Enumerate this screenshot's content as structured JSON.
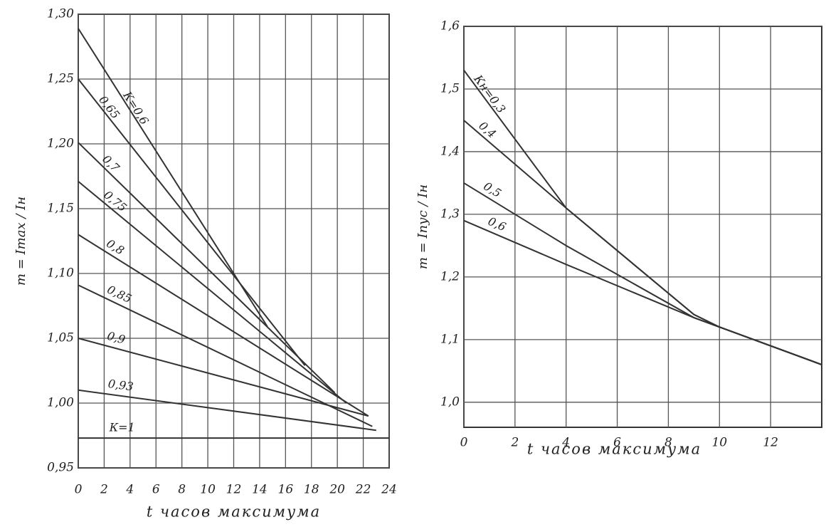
{
  "chart_data": [
    {
      "type": "line",
      "x_label": "t часов максимума",
      "y_label": "m = Imax / Iн",
      "xlim": [
        0,
        24
      ],
      "xticks": [
        0,
        2,
        4,
        6,
        8,
        10,
        12,
        14,
        16,
        18,
        20,
        22,
        24
      ],
      "ylim": [
        0.95,
        1.3
      ],
      "yticks": [
        {
          "value": 0.95,
          "label": "0,95"
        },
        {
          "value": 1.0,
          "label": "1,00"
        },
        {
          "value": 1.05,
          "label": "1,05"
        },
        {
          "value": 1.1,
          "label": "1,10"
        },
        {
          "value": 1.15,
          "label": "1,15"
        },
        {
          "value": 1.2,
          "label": "1,20"
        },
        {
          "value": 1.25,
          "label": "1,25"
        },
        {
          "value": 1.3,
          "label": "1,30"
        }
      ],
      "grid": true,
      "series": [
        {
          "name": "К=0,6",
          "color": "#333333",
          "x": [
            0,
            14.6
          ],
          "values": [
            1.289,
            1.059
          ]
        },
        {
          "name": "0,65",
          "color": "#333333",
          "x": [
            0,
            17.5
          ],
          "values": [
            1.25,
            1.029
          ]
        },
        {
          "name": "0,7",
          "color": "#333333",
          "x": [
            0,
            19.8
          ],
          "values": [
            1.201,
            1.008
          ]
        },
        {
          "name": "0,75",
          "color": "#333333",
          "x": [
            0,
            20.7
          ],
          "values": [
            1.171,
            1.0
          ]
        },
        {
          "name": "0,8",
          "color": "#333333",
          "x": [
            0,
            22.4
          ],
          "values": [
            1.13,
            0.99
          ]
        },
        {
          "name": "0,85",
          "color": "#333333",
          "x": [
            0,
            22.7
          ],
          "values": [
            1.091,
            0.982
          ]
        },
        {
          "name": "0,9",
          "color": "#333333",
          "x": [
            0,
            22.4
          ],
          "values": [
            1.05,
            0.99
          ]
        },
        {
          "name": "0,93",
          "color": "#333333",
          "x": [
            0,
            23
          ],
          "values": [
            1.01,
            0.979
          ]
        },
        {
          "name": "К=1",
          "color": "#333333",
          "x": [
            0,
            24
          ],
          "values": [
            0.973,
            0.973
          ]
        }
      ]
    },
    {
      "type": "line",
      "x_label": "t часов максимума",
      "y_label": "m = Iпус / Iн",
      "xlim": [
        0,
        14
      ],
      "xticks": [
        0,
        2,
        4,
        6,
        8,
        10,
        12
      ],
      "ylim": [
        0.96,
        1.6
      ],
      "yticks": [
        {
          "value": 1.0,
          "label": "1,0"
        },
        {
          "value": 1.1,
          "label": "1,1"
        },
        {
          "value": 1.2,
          "label": "1,2"
        },
        {
          "value": 1.3,
          "label": "1,3"
        },
        {
          "value": 1.4,
          "label": "1,4"
        },
        {
          "value": 1.5,
          "label": "1,5"
        },
        {
          "value": 1.6,
          "label": "1,6"
        }
      ],
      "grid": true,
      "series": [
        {
          "name": "Кн=0,3",
          "color": "#333333",
          "x": [
            0,
            4,
            9,
            10,
            14
          ],
          "values": [
            1.53,
            1.31,
            1.14,
            1.12,
            1.06
          ]
        },
        {
          "name": "0,4",
          "color": "#333333",
          "x": [
            0,
            4,
            9,
            10,
            14
          ],
          "values": [
            1.45,
            1.31,
            1.14,
            1.12,
            1.06
          ]
        },
        {
          "name": "0,5",
          "color": "#333333",
          "x": [
            0,
            4,
            9,
            10,
            14
          ],
          "values": [
            1.35,
            1.25,
            1.135,
            1.12,
            1.06
          ]
        },
        {
          "name": "0,6",
          "color": "#333333",
          "x": [
            0,
            4,
            9,
            10,
            14
          ],
          "values": [
            1.29,
            1.22,
            1.135,
            1.12,
            1.06
          ]
        }
      ]
    }
  ]
}
